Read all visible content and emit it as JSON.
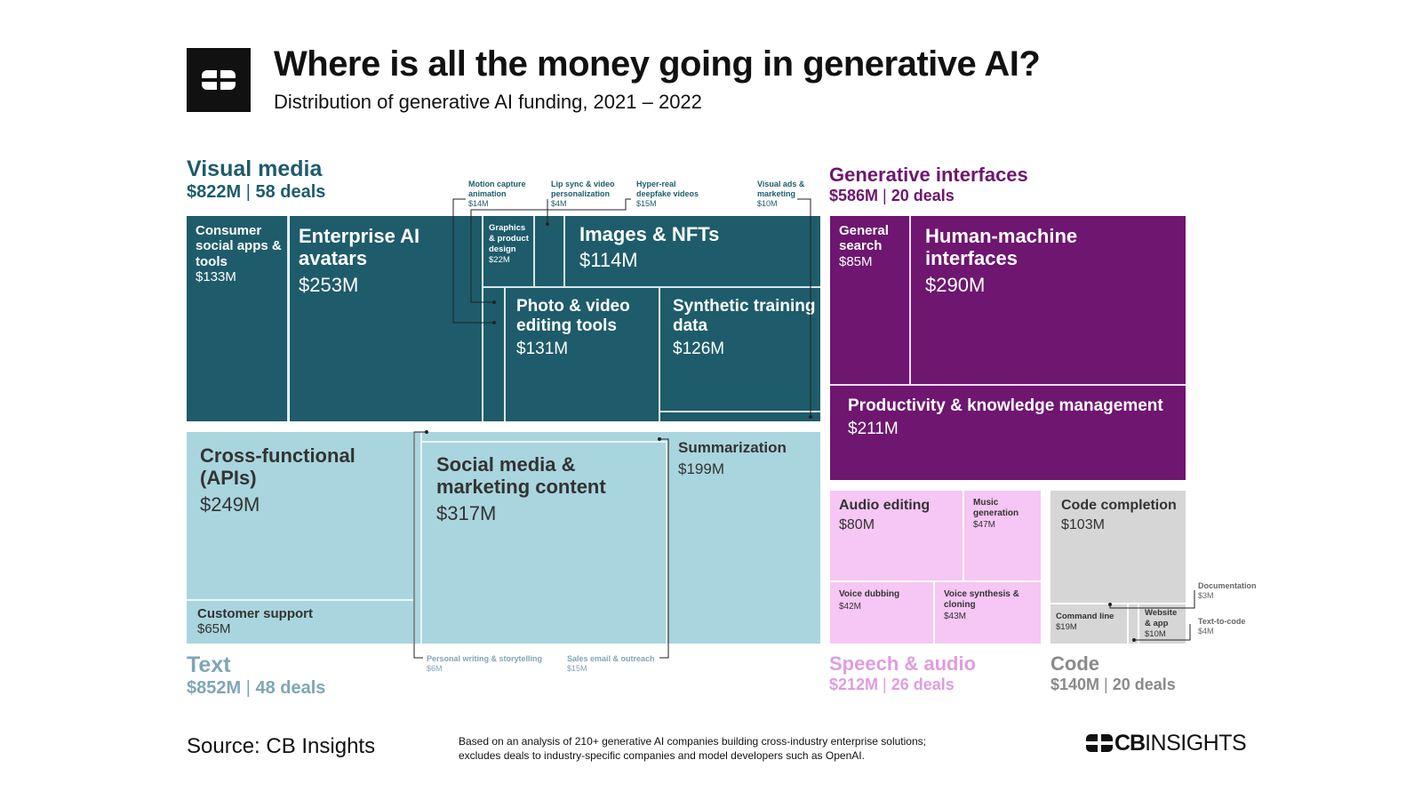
{
  "header": {
    "title": "Where is all the money going in generative AI?",
    "subtitle": "Distribution of generative AI funding, 2021 – 2022"
  },
  "categories": {
    "visual_media": {
      "name": "Visual media",
      "amount": "$822M",
      "deals": "58 deals",
      "color": "#1e5c6b"
    },
    "generative_interfaces": {
      "name": "Generative interfaces",
      "amount": "$586M",
      "deals": "20 deals",
      "color": "#6e1670"
    },
    "text": {
      "name": "Text",
      "amount": "$852M",
      "deals": "48 deals",
      "color": "#a9d5de"
    },
    "speech_audio": {
      "name": "Speech & audio",
      "amount": "$212M",
      "deals": "26 deals",
      "color": "#f6c6f4"
    },
    "code": {
      "name": "Code",
      "amount": "$140M",
      "deals": "20 deals",
      "color": "#d6d6d6"
    }
  },
  "chart_data": {
    "type": "treemap",
    "title": "Where is all the money going in generative AI?",
    "subtitle": "Distribution of generative AI funding, 2021 – 2022",
    "unit": "$M",
    "groups": [
      {
        "name": "Visual media",
        "total": 822,
        "deals": 58,
        "children": [
          {
            "name": "Consumer social apps & tools",
            "value": 133
          },
          {
            "name": "Enterprise AI avatars",
            "value": 253
          },
          {
            "name": "Graphics & product design",
            "value": 22
          },
          {
            "name": "Images & NFTs",
            "value": 114
          },
          {
            "name": "Photo & video editing tools",
            "value": 131
          },
          {
            "name": "Synthetic training data",
            "value": 126
          },
          {
            "name": "Motion capture animation",
            "value": 14
          },
          {
            "name": "Lip sync & video personalization",
            "value": 4
          },
          {
            "name": "Hyper-real deepfake videos",
            "value": 15
          },
          {
            "name": "Visual ads & marketing",
            "value": 10
          }
        ]
      },
      {
        "name": "Generative interfaces",
        "total": 586,
        "deals": 20,
        "children": [
          {
            "name": "General search",
            "value": 85
          },
          {
            "name": "Human-machine interfaces",
            "value": 290
          },
          {
            "name": "Productivity & knowledge management",
            "value": 211
          }
        ]
      },
      {
        "name": "Text",
        "total": 852,
        "deals": 48,
        "children": [
          {
            "name": "Cross-functional (APIs)",
            "value": 249
          },
          {
            "name": "Customer support",
            "value": 65
          },
          {
            "name": "Social media & marketing content",
            "value": 317
          },
          {
            "name": "Summarization",
            "value": 199
          },
          {
            "name": "Personal writing & storytelling",
            "value": 6
          },
          {
            "name": "Sales email & outreach",
            "value": 15
          }
        ]
      },
      {
        "name": "Speech & audio",
        "total": 212,
        "deals": 26,
        "children": [
          {
            "name": "Audio editing",
            "value": 80
          },
          {
            "name": "Music generation",
            "value": 47
          },
          {
            "name": "Voice dubbing",
            "value": 42
          },
          {
            "name": "Voice synthesis & cloning",
            "value": 43
          }
        ]
      },
      {
        "name": "Code",
        "total": 140,
        "deals": 20,
        "children": [
          {
            "name": "Code completion",
            "value": 103
          },
          {
            "name": "Command line",
            "value": 19
          },
          {
            "name": "Website & app",
            "value": 10
          },
          {
            "name": "Documentation",
            "value": 3
          },
          {
            "name": "Text-to-code",
            "value": 4
          }
        ]
      }
    ]
  },
  "cells": {
    "consumer": {
      "label": "Consumer social apps & tools",
      "value": "$133M"
    },
    "enterprise": {
      "label": "Enterprise AI avatars",
      "value": "$253M"
    },
    "graphics": {
      "label": "Graphics & product design",
      "value": "$22M"
    },
    "images": {
      "label": "Images & NFTs",
      "value": "$114M"
    },
    "photo": {
      "label": "Photo & video editing tools",
      "value": "$131M"
    },
    "synthetic": {
      "label": "Synthetic training data",
      "value": "$126M"
    },
    "general_search": {
      "label": "General search",
      "value": "$85M"
    },
    "hmi": {
      "label": "Human-machine interfaces",
      "value": "$290M"
    },
    "productivity": {
      "label": "Productivity & knowledge management",
      "value": "$211M"
    },
    "cross": {
      "label": "Cross-functional (APIs)",
      "value": "$249M"
    },
    "customer": {
      "label": "Customer support",
      "value": "$65M"
    },
    "social": {
      "label": "Social media & marketing content",
      "value": "$317M"
    },
    "summarization": {
      "label": "Summarization",
      "value": "$199M"
    },
    "audio_editing": {
      "label": "Audio editing",
      "value": "$80M"
    },
    "music": {
      "label": "Music generation",
      "value": "$47M"
    },
    "dubbing": {
      "label": "Voice dubbing",
      "value": "$42M"
    },
    "synthesis": {
      "label": "Voice synthesis & cloning",
      "value": "$43M"
    },
    "code_completion": {
      "label": "Code completion",
      "value": "$103M"
    },
    "command_line": {
      "label": "Command line",
      "value": "$19M"
    },
    "website_app": {
      "label": "Website & app",
      "value": "$10M"
    }
  },
  "annotations": {
    "motion": {
      "label": "Motion capture animation",
      "value": "$14M"
    },
    "lipsync": {
      "label": "Lip sync & video personalization",
      "value": "$4M"
    },
    "deepfake": {
      "label": "Hyper-real deepfake videos",
      "value": "$15M"
    },
    "visual_ads": {
      "label": "Visual ads & marketing",
      "value": "$10M"
    },
    "personal_writing": {
      "label": "Personal writing & storytelling",
      "value": "$6M"
    },
    "sales_email": {
      "label": "Sales email & outreach",
      "value": "$15M"
    },
    "documentation": {
      "label": "Documentation",
      "value": "$3M"
    },
    "text_to_code": {
      "label": "Text-to-code",
      "value": "$4M"
    }
  },
  "footer": {
    "source": "Source: CB Insights",
    "note": "Based on an analysis of 210+ generative AI companies building cross-industry enterprise solutions; excludes deals to industry-specific companies and model developers such as OpenAI.",
    "brand_bold": "CB",
    "brand_rest": "INSIGHTS"
  }
}
